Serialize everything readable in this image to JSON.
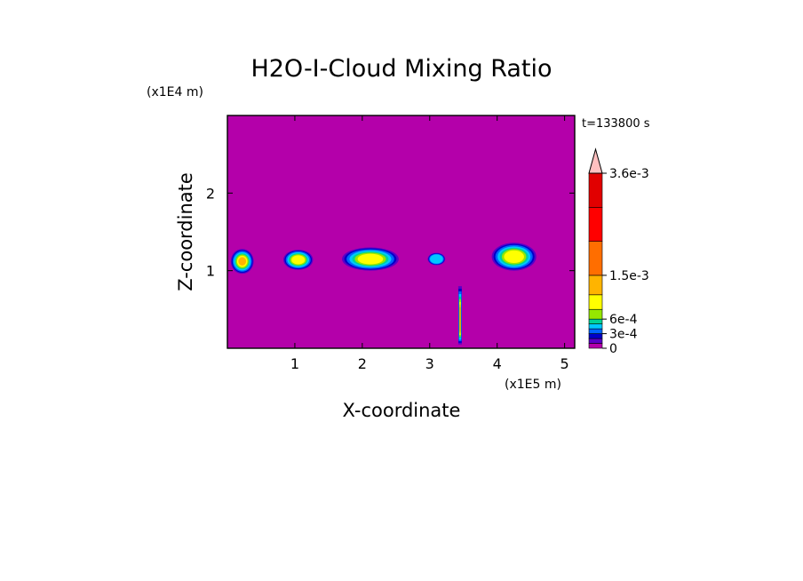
{
  "chart_data": {
    "type": "heatmap",
    "title": "H2O-I-Cloud Mixing Ratio",
    "time_label": "t=133800 s",
    "xlabel": "X-coordinate",
    "ylabel": "Z-coordinate",
    "x_scale_label": "(x1E5 m)",
    "y_scale_label": "(x1E4 m)",
    "xlim": [
      0,
      5.15
    ],
    "ylim": [
      0,
      3.0
    ],
    "x_ticks": [
      1,
      2,
      3,
      4,
      5
    ],
    "y_ticks": [
      1,
      2
    ],
    "x_tick_labels": [
      "1",
      "2",
      "3",
      "4",
      "5"
    ],
    "y_tick_labels": [
      "1",
      "2"
    ],
    "background_color": "#b400aa",
    "colorbar": {
      "levels": [
        0,
        0.0001,
        0.0002,
        0.0003,
        0.0004,
        0.0005,
        0.0006,
        0.0008,
        0.0011,
        0.0015,
        0.0022,
        0.0029,
        0.0036
      ],
      "colors": [
        "#b400aa",
        "#5a00c8",
        "#0000c8",
        "#0064ff",
        "#00c8ff",
        "#00d296",
        "#96e600",
        "#ffff00",
        "#ffb400",
        "#ff6e00",
        "#ff0000",
        "#e10000",
        "#ff8080"
      ],
      "extend_color": "#ffc0c0",
      "labels": [
        "0",
        "3e-4",
        "6e-4",
        "1.5e-3",
        "3.6e-3"
      ],
      "label_values": [
        0,
        0.0003,
        0.0006,
        0.0015,
        0.0036
      ]
    },
    "cloud_cells": [
      {
        "x": 0.22,
        "z": 1.12,
        "rx": 0.17,
        "rz": 0.16,
        "max_level": 8
      },
      {
        "x": 1.05,
        "z": 1.14,
        "rx": 0.22,
        "rz": 0.13,
        "max_level": 7
      },
      {
        "x": 2.12,
        "z": 1.15,
        "rx": 0.42,
        "rz": 0.15,
        "max_level": 7
      },
      {
        "x": 3.1,
        "z": 1.15,
        "rx": 0.13,
        "rz": 0.08,
        "max_level": 4
      },
      {
        "x": 4.25,
        "z": 1.18,
        "rx": 0.33,
        "rz": 0.18,
        "max_level": 7
      }
    ],
    "column": {
      "x": 3.45,
      "z_bottom": 0.05,
      "z_top": 0.8,
      "max_level": 9
    }
  }
}
